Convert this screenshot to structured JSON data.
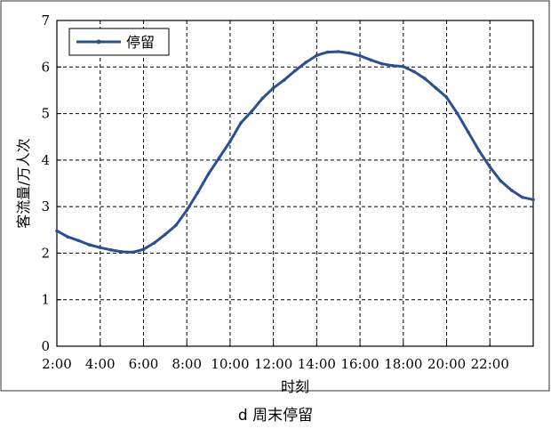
{
  "chart_data": {
    "type": "line",
    "title": "",
    "caption": "d 周末停留",
    "xlabel": "时刻",
    "ylabel": "客流量/万人次",
    "x_unit": "hour of day",
    "x_ticks": [
      2,
      4,
      6,
      8,
      10,
      12,
      14,
      16,
      18,
      20,
      22
    ],
    "x_tick_labels": [
      "2:00",
      "4:00",
      "6:00",
      "8:00",
      "10:00",
      "12:00",
      "14:00",
      "16:00",
      "18:00",
      "20:00",
      "22:00"
    ],
    "xlim": [
      2,
      24
    ],
    "y_ticks": [
      0,
      1,
      2,
      3,
      4,
      5,
      6,
      7
    ],
    "y_tick_labels": [
      "0",
      "1",
      "2",
      "3",
      "4",
      "5",
      "6",
      "7"
    ],
    "ylim": [
      0,
      7
    ],
    "grid": true,
    "legend_position": "top-left",
    "series": [
      {
        "name": "停留",
        "color": "#2b4f8f",
        "x": [
          2,
          2.5,
          3,
          3.5,
          4,
          4.5,
          5,
          5.5,
          6,
          6.5,
          7,
          7.5,
          8,
          8.5,
          9,
          9.5,
          10,
          10.5,
          11,
          11.5,
          12,
          12.5,
          13,
          13.5,
          14,
          14.5,
          15,
          15.5,
          16,
          16.5,
          17,
          17.5,
          18,
          18.5,
          19,
          19.5,
          20,
          20.5,
          21,
          21.5,
          22,
          22.5,
          23,
          23.5,
          24
        ],
        "values": [
          2.48,
          2.35,
          2.27,
          2.18,
          2.12,
          2.07,
          2.03,
          2.02,
          2.08,
          2.22,
          2.4,
          2.6,
          2.92,
          3.3,
          3.7,
          4.05,
          4.4,
          4.8,
          5.05,
          5.33,
          5.55,
          5.72,
          5.92,
          6.1,
          6.25,
          6.32,
          6.33,
          6.3,
          6.24,
          6.15,
          6.07,
          6.03,
          6.01,
          5.9,
          5.75,
          5.55,
          5.35,
          5.0,
          4.6,
          4.2,
          3.85,
          3.55,
          3.35,
          3.2,
          3.15
        ]
      }
    ]
  }
}
